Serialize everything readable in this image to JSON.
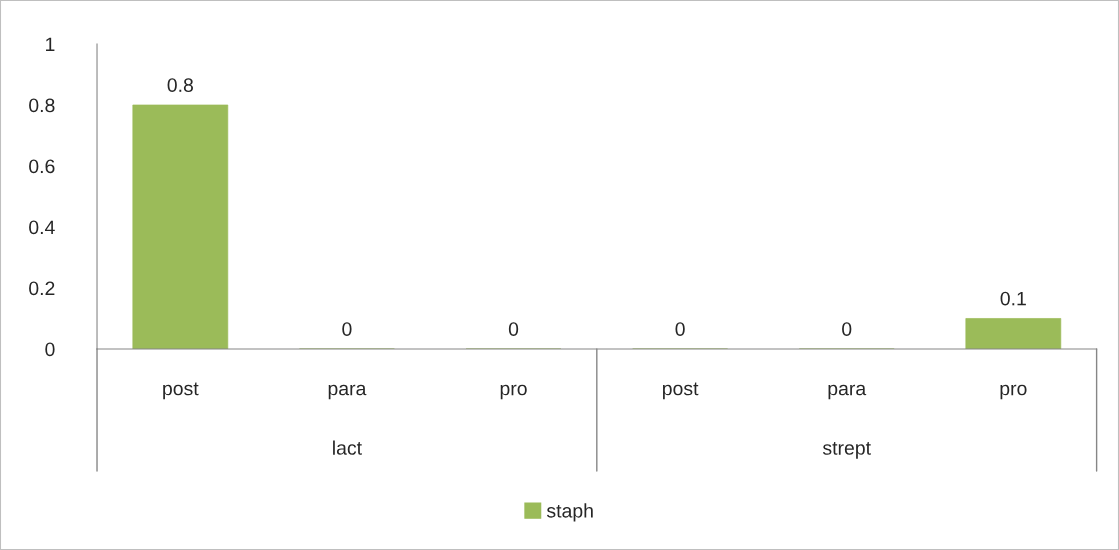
{
  "chart_data": {
    "type": "bar",
    "categories": [
      "post",
      "para",
      "pro",
      "post",
      "para",
      "pro"
    ],
    "series": [
      {
        "name": "staph",
        "color": "#9bbb59",
        "values": [
          0.8,
          0,
          0,
          0,
          0,
          0.1
        ]
      }
    ],
    "annotations": [
      "lact",
      "strept"
    ],
    "ylim": [
      0,
      1
    ],
    "yticks": [
      0,
      {
        "value": 0.2,
        "label": "0.2"
      },
      {
        "value": 0.4,
        "label": "0.4"
      },
      {
        "value": 0.6,
        "label": "0.6"
      },
      {
        "value": 0.8,
        "label": "0.8"
      },
      1
    ],
    "data_labels": true,
    "legend": "bottom",
    "grid": false
  }
}
